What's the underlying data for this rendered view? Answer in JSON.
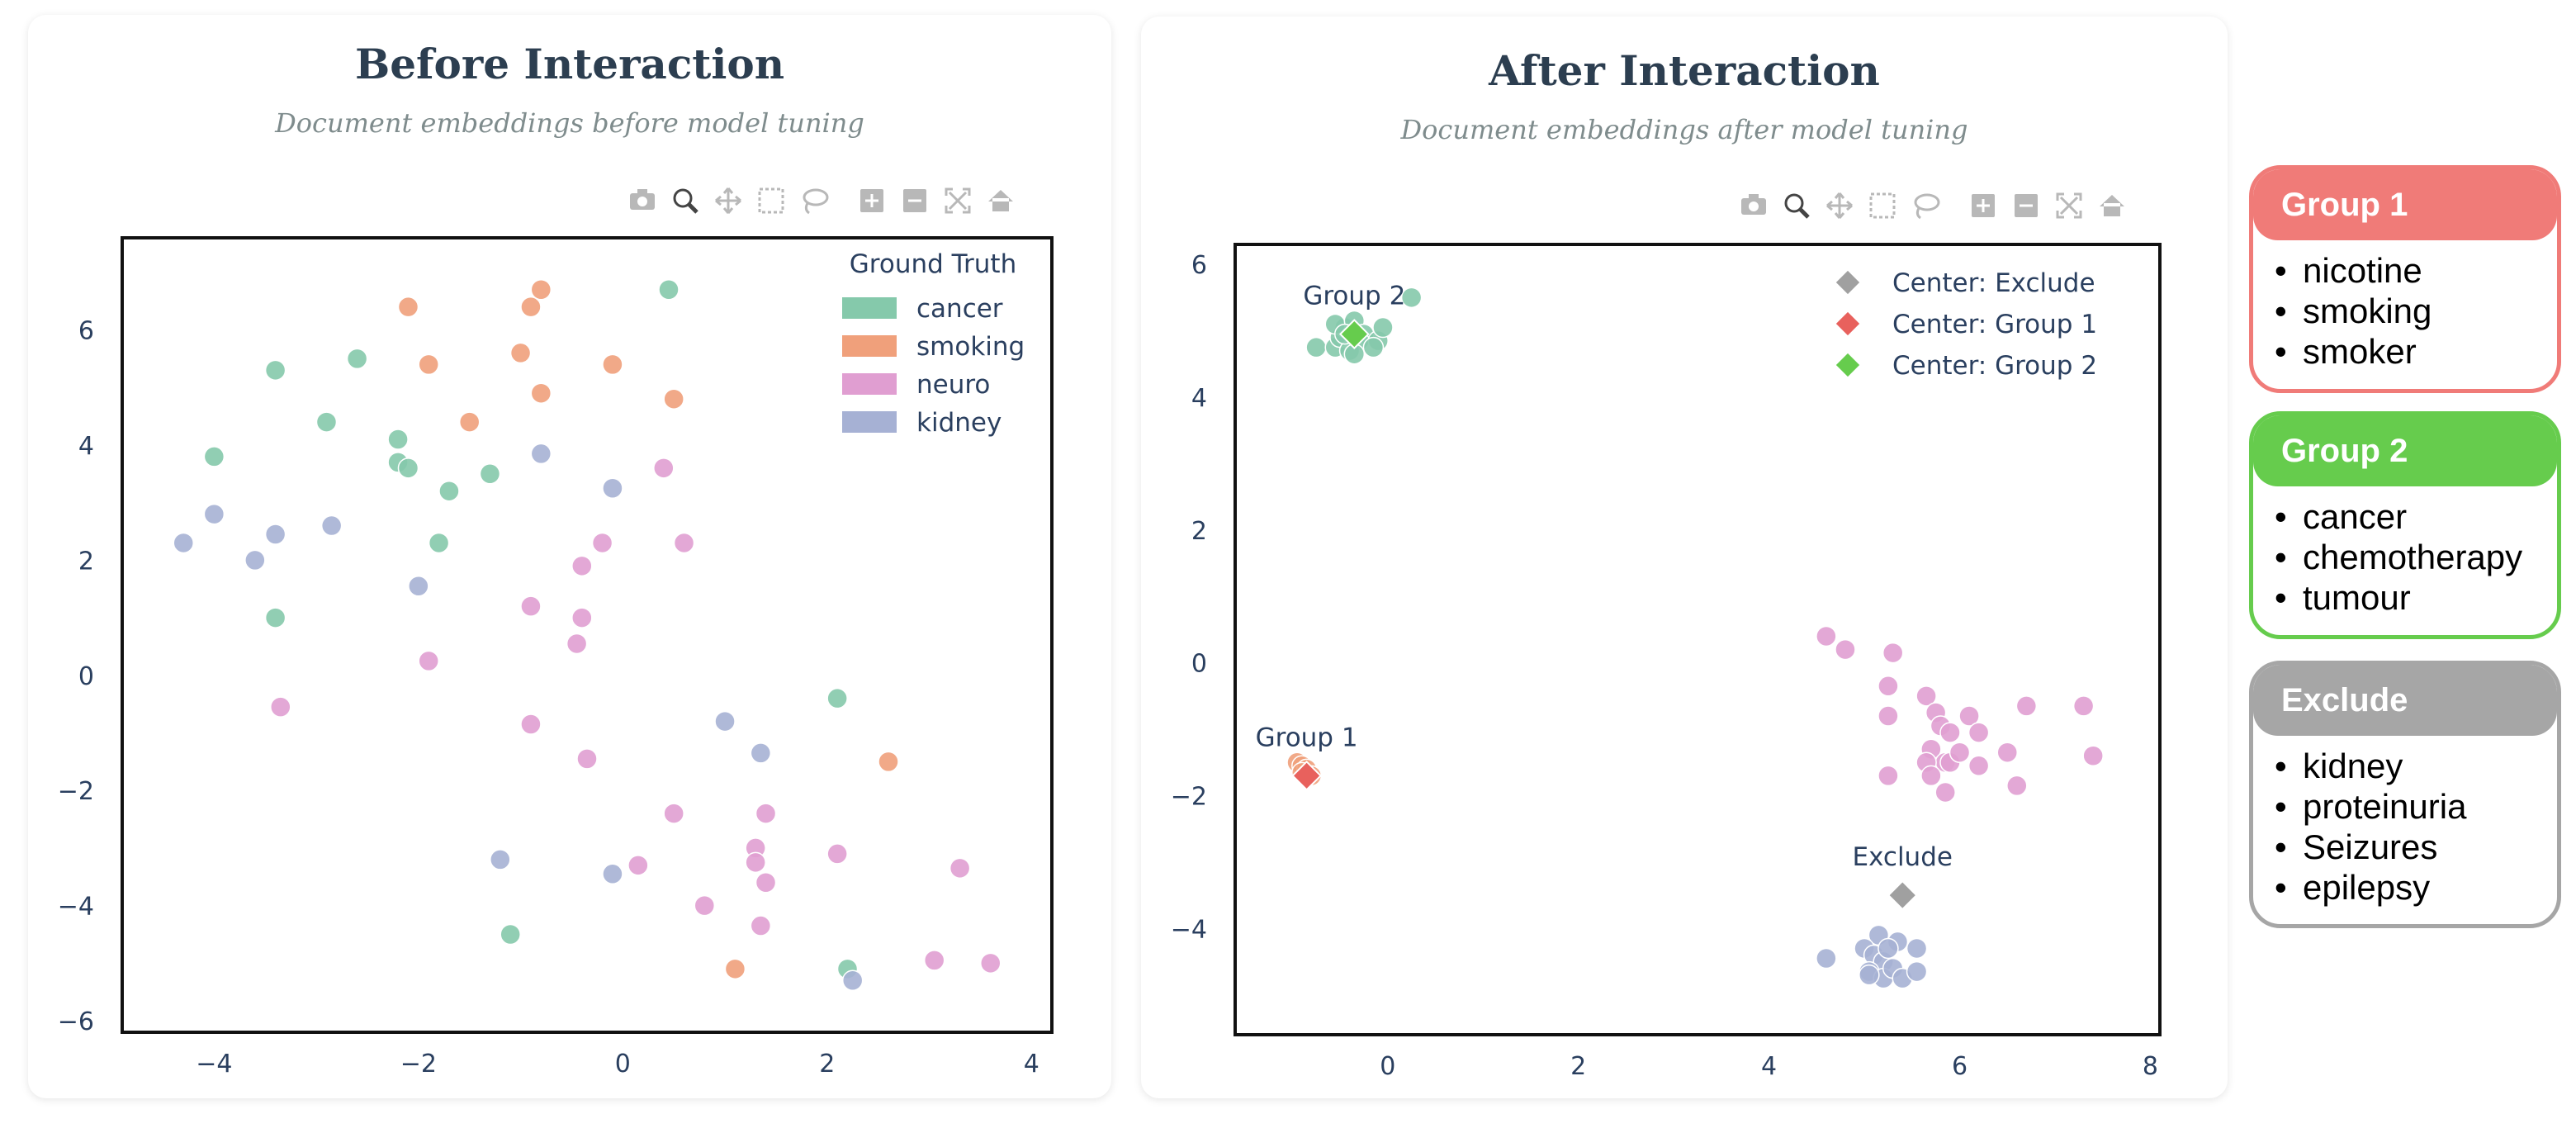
{
  "panels": [
    {
      "title": "Before Interaction",
      "subtitle": "Document embeddings before model tuning"
    },
    {
      "title": "After Interaction",
      "subtitle": "Document embeddings after model tuning"
    }
  ],
  "modebar_icons": [
    "camera-icon",
    "zoom-icon",
    "pan-icon",
    "box-select-icon",
    "lasso-icon",
    "zoom-in-icon",
    "zoom-out-icon",
    "autoscale-icon",
    "reset-axes-icon"
  ],
  "keyword_groups": [
    {
      "name": "Group 1",
      "color": "#f07b78",
      "words": [
        "nicotine",
        "smoking",
        "smoker"
      ]
    },
    {
      "name": "Group 2",
      "color": "#66cc4d",
      "words": [
        "cancer",
        "chemotherapy",
        "tumour"
      ]
    },
    {
      "name": "Exclude",
      "color": "#a6a6a6",
      "words": [
        "kidney",
        "proteinuria",
        "Seizures",
        "epilepsy"
      ]
    }
  ],
  "chart_data": [
    {
      "type": "scatter",
      "xlim": [
        -4.9,
        4.2
      ],
      "ylim": [
        -6.2,
        7.6
      ],
      "xticks": [
        -4,
        -2,
        0,
        2,
        4
      ],
      "yticks": [
        -6,
        -4,
        -2,
        0,
        2,
        4,
        6
      ],
      "legend": {
        "title": "Ground Truth",
        "placement": "top-right"
      },
      "series": [
        {
          "name": "cancer",
          "color": "#85c9ab",
          "points": [
            [
              0.45,
              6.7
            ],
            [
              -3.4,
              5.3
            ],
            [
              -2.6,
              5.5
            ],
            [
              -2.9,
              4.4
            ],
            [
              -4,
              3.8
            ],
            [
              -2.2,
              4.1
            ],
            [
              -2.2,
              3.7
            ],
            [
              -2.1,
              3.6
            ],
            [
              -1.7,
              3.2
            ],
            [
              -1.3,
              3.5
            ],
            [
              -1.8,
              2.3
            ],
            [
              -3.4,
              1
            ],
            [
              2.1,
              -0.4
            ],
            [
              -1.1,
              -4.5
            ],
            [
              2.2,
              -5.1
            ]
          ]
        },
        {
          "name": "smoking",
          "color": "#f0a07b",
          "points": [
            [
              -2.1,
              6.4
            ],
            [
              -0.8,
              6.7
            ],
            [
              -0.9,
              6.4
            ],
            [
              -1,
              5.6
            ],
            [
              -1.9,
              5.4
            ],
            [
              -0.1,
              5.4
            ],
            [
              -0.8,
              4.9
            ],
            [
              0.5,
              4.8
            ],
            [
              -1.5,
              4.4
            ],
            [
              2.6,
              -1.5
            ],
            [
              1.1,
              -5.1
            ]
          ]
        },
        {
          "name": "neuro",
          "color": "#e09ed1",
          "points": [
            [
              0.4,
              3.6
            ],
            [
              -0.2,
              2.3
            ],
            [
              0.6,
              2.3
            ],
            [
              -0.4,
              1.9
            ],
            [
              -0.9,
              1.2
            ],
            [
              -0.4,
              1
            ],
            [
              -0.45,
              0.55
            ],
            [
              -1.9,
              0.25
            ],
            [
              -3.35,
              -0.55
            ],
            [
              -0.9,
              -0.85
            ],
            [
              -0.35,
              -1.45
            ],
            [
              0.5,
              -2.4
            ],
            [
              1.4,
              -2.4
            ],
            [
              0.15,
              -3.3
            ],
            [
              1.3,
              -3
            ],
            [
              1.3,
              -3.25
            ],
            [
              1.4,
              -3.6
            ],
            [
              2.1,
              -3.1
            ],
            [
              3.3,
              -3.35
            ],
            [
              0.8,
              -4
            ],
            [
              1.35,
              -4.35
            ],
            [
              3.05,
              -4.95
            ],
            [
              3.6,
              -5
            ]
          ]
        },
        {
          "name": "kidney",
          "color": "#a6b1d4",
          "points": [
            [
              -0.8,
              3.85
            ],
            [
              -0.1,
              3.25
            ],
            [
              -4,
              2.8
            ],
            [
              -2.85,
              2.6
            ],
            [
              -3.4,
              2.45
            ],
            [
              -4.3,
              2.3
            ],
            [
              -3.6,
              2
            ],
            [
              -2,
              1.55
            ],
            [
              1,
              -0.8
            ],
            [
              1.35,
              -1.35
            ],
            [
              -1.2,
              -3.2
            ],
            [
              -0.1,
              -3.45
            ],
            [
              2.25,
              -5.3
            ]
          ]
        }
      ]
    },
    {
      "type": "scatter",
      "xlim": [
        -1.6,
        8.1
      ],
      "ylim": [
        -5.6,
        6.3
      ],
      "xticks": [
        0,
        2,
        4,
        6,
        8
      ],
      "yticks": [
        -4,
        -2,
        0,
        2,
        4,
        6
      ],
      "legend": {
        "placement": "top-right"
      },
      "series": [
        {
          "name": "cancer",
          "color": "#85c9ab",
          "points": [
            [
              0.25,
              5.5
            ],
            [
              -0.75,
              4.75
            ],
            [
              -0.55,
              4.75
            ],
            [
              -0.5,
              4.9
            ],
            [
              -0.45,
              5.05
            ],
            [
              -0.55,
              5.1
            ],
            [
              -0.35,
              5.15
            ],
            [
              -0.25,
              4.95
            ],
            [
              -0.3,
              4.85
            ],
            [
              -0.4,
              4.7
            ],
            [
              -0.1,
              4.85
            ],
            [
              -0.05,
              5.05
            ],
            [
              -0.15,
              4.75
            ],
            [
              -0.35,
              4.65
            ],
            [
              -0.45,
              4.95
            ]
          ]
        },
        {
          "name": "smoking",
          "color": "#f0a07b",
          "points": [
            [
              -0.95,
              -1.5
            ],
            [
              -0.9,
              -1.55
            ],
            [
              -0.85,
              -1.6
            ],
            [
              -0.9,
              -1.65
            ],
            [
              -0.8,
              -1.7
            ]
          ]
        },
        {
          "name": "neuro",
          "color": "#e09ed1",
          "points": [
            [
              4.6,
              0.4
            ],
            [
              4.8,
              0.2
            ],
            [
              5.3,
              0.15
            ],
            [
              5.25,
              -0.35
            ],
            [
              5.65,
              -0.5
            ],
            [
              5.25,
              -0.8
            ],
            [
              5.75,
              -0.75
            ],
            [
              6.1,
              -0.8
            ],
            [
              5.8,
              -0.95
            ],
            [
              5.9,
              -1.05
            ],
            [
              6.2,
              -1.05
            ],
            [
              5.7,
              -1.3
            ],
            [
              5.85,
              -1.5
            ],
            [
              5.65,
              -1.5
            ],
            [
              5.9,
              -1.5
            ],
            [
              6,
              -1.35
            ],
            [
              6.2,
              -1.55
            ],
            [
              6.5,
              -1.35
            ],
            [
              6.7,
              -0.65
            ],
            [
              7.3,
              -0.65
            ],
            [
              7.4,
              -1.4
            ],
            [
              5.25,
              -1.7
            ],
            [
              5.7,
              -1.7
            ],
            [
              5.85,
              -1.95
            ],
            [
              6.6,
              -1.85
            ]
          ]
        },
        {
          "name": "kidney",
          "color": "#a6b1d4",
          "points": [
            [
              5.15,
              -4.1
            ],
            [
              5.35,
              -4.2
            ],
            [
              4.6,
              -4.45
            ],
            [
              5,
              -4.3
            ],
            [
              5.1,
              -4.4
            ],
            [
              5.2,
              -4.5
            ],
            [
              5.55,
              -4.3
            ],
            [
              5.05,
              -4.65
            ],
            [
              5.2,
              -4.75
            ],
            [
              5.3,
              -4.6
            ],
            [
              5.4,
              -4.75
            ],
            [
              5.55,
              -4.65
            ],
            [
              5.05,
              -4.7
            ],
            [
              5.25,
              -4.3
            ]
          ]
        }
      ],
      "centers": [
        {
          "name": "Center: Exclude",
          "label": "Exclude",
          "color": "#a0a0a0",
          "x": 5.4,
          "y": -3.5
        },
        {
          "name": "Center: Group 1",
          "label": "Group 1",
          "color": "#e8615d",
          "x": -0.85,
          "y": -1.7
        },
        {
          "name": "Center: Group 2",
          "label": "Group 2",
          "color": "#66cc4d",
          "x": -0.35,
          "y": 4.95
        }
      ]
    }
  ]
}
